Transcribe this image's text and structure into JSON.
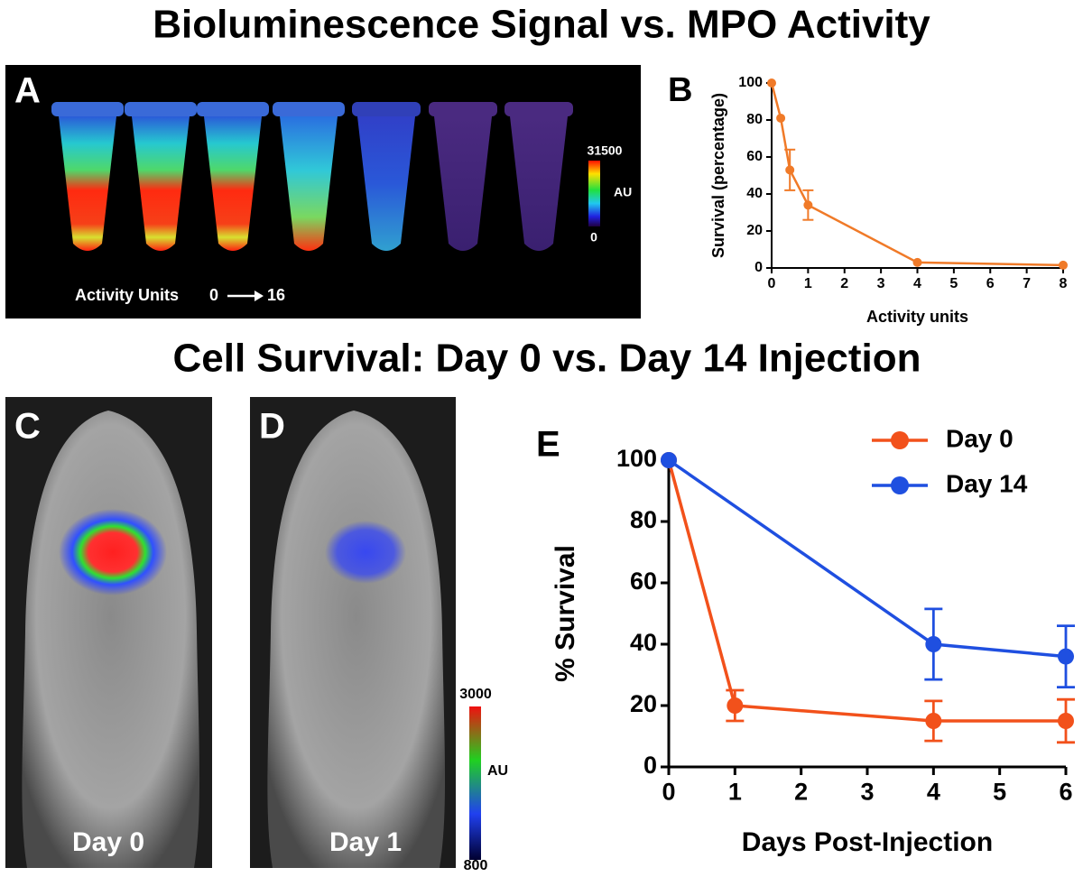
{
  "headings": [
    "Bioluminescence Signal vs. MPO Activity",
    "Cell Survival: Day 0 vs. Day 14 Injection"
  ],
  "image_panels": [
    {
      "label": "A",
      "colorbar": {
        "max": 31500,
        "unit": "AU",
        "min": 0
      },
      "caption": {
        "text": "Activity Units",
        "from": 0,
        "to": 16
      }
    },
    {
      "label": "C",
      "caption": "Day 0"
    },
    {
      "label": "D",
      "caption": "Day 1",
      "colorbar": {
        "max": 3000,
        "unit": "AU",
        "min": 800
      }
    }
  ],
  "chart_data": [
    {
      "type": "line",
      "panel": "B",
      "x_label": "Activity units",
      "y_label": "Survival (percentage)",
      "xlim": [
        0,
        8
      ],
      "ylim": [
        0,
        100
      ],
      "xticks": [
        0,
        1,
        2,
        3,
        4,
        5,
        6,
        7,
        8
      ],
      "yticks": [
        0,
        20,
        40,
        60,
        80,
        100
      ],
      "series": [
        {
          "color": "#f07a28",
          "x": [
            0,
            0.25,
            0.5,
            1,
            4,
            8
          ],
          "values": [
            100,
            81,
            53,
            34,
            3,
            1.5
          ],
          "errors": [
            null,
            null,
            11,
            8,
            null,
            null
          ]
        }
      ]
    },
    {
      "type": "line",
      "panel": "E",
      "x_label": "Days Post-Injection",
      "y_label": "% Survival",
      "xlim": [
        0,
        6
      ],
      "ylim": [
        0,
        100
      ],
      "xticks": [
        0,
        1,
        2,
        3,
        4,
        5,
        6
      ],
      "yticks": [
        0,
        20,
        40,
        60,
        80,
        100
      ],
      "legend": "upper right",
      "series": [
        {
          "name": "Day 0",
          "color": "#f2511b",
          "x": [
            0,
            1,
            4,
            6
          ],
          "values": [
            100,
            20,
            15,
            15
          ],
          "errors": [
            null,
            5,
            6.5,
            7
          ]
        },
        {
          "name": "Day 14",
          "color": "#1f4fe0",
          "x": [
            0,
            4,
            6
          ],
          "values": [
            100,
            40,
            36
          ],
          "errors": [
            null,
            11.5,
            10
          ]
        }
      ]
    }
  ]
}
